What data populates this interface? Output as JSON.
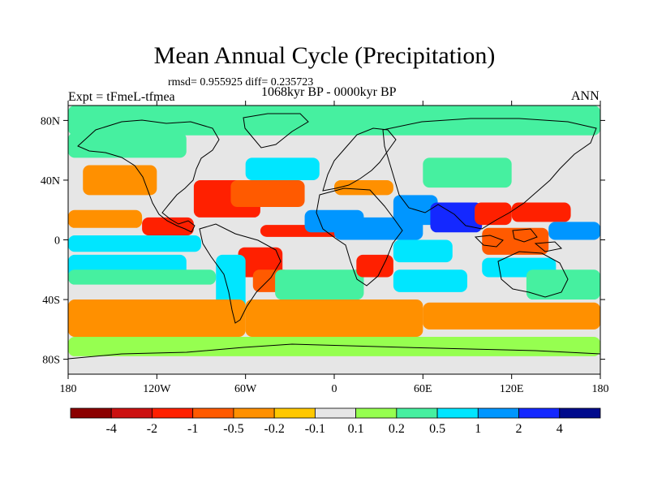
{
  "title": "Mean Annual Cycle (Precipitation)",
  "stats_text": "rmsd= 0.955925 diff= 0.235723",
  "left_label": "Expt = tFmeL-tfmea",
  "center_label": "1068kyr BP - 0000kyr BP",
  "right_label": "ANN",
  "chart_data": {
    "type": "heatmap",
    "title": "Mean Annual Cycle (Precipitation)",
    "projection": "cylindrical equidistant",
    "x_range": [
      -180,
      180
    ],
    "y_range": [
      -90,
      90
    ],
    "x_ticks": [
      {
        "value": -180,
        "label": "180"
      },
      {
        "value": -120,
        "label": "120W"
      },
      {
        "value": -60,
        "label": "60W"
      },
      {
        "value": 0,
        "label": "0"
      },
      {
        "value": 60,
        "label": "60E"
      },
      {
        "value": 120,
        "label": "120E"
      },
      {
        "value": 180,
        "label": "180"
      }
    ],
    "y_ticks": [
      {
        "value": 80,
        "label": "80N"
      },
      {
        "value": 40,
        "label": "40N"
      },
      {
        "value": 0,
        "label": "0"
      },
      {
        "value": -40,
        "label": "40S"
      },
      {
        "value": -80,
        "label": "80S"
      }
    ],
    "colorbar": {
      "levels": [
        "-4",
        "-2",
        "-1",
        "-0.5",
        "-0.2",
        "-0.1",
        "0.1",
        "0.2",
        "0.5",
        "1",
        "2",
        "4"
      ],
      "colors": [
        "#8b0000",
        "#cc1010",
        "#ff2000",
        "#ff5a00",
        "#ff9000",
        "#ffc800",
        "#e6e6e6",
        "#96ff50",
        "#46f0a0",
        "#00e6ff",
        "#0096ff",
        "#1428ff",
        "#000a8c"
      ]
    },
    "regions": [
      {
        "lon": [
          -180,
          180
        ],
        "lat": [
          70,
          90
        ],
        "value": 0.25
      },
      {
        "lon": [
          -180,
          -100
        ],
        "lat": [
          55,
          72
        ],
        "value": 0.3
      },
      {
        "lon": [
          -170,
          -120
        ],
        "lat": [
          30,
          50
        ],
        "value": -0.3
      },
      {
        "lon": [
          -180,
          -130
        ],
        "lat": [
          8,
          20
        ],
        "value": -0.4
      },
      {
        "lon": [
          -130,
          -95
        ],
        "lat": [
          3,
          15
        ],
        "value": -1.5
      },
      {
        "lon": [
          -180,
          -90
        ],
        "lat": [
          -8,
          3
        ],
        "value": 0.8
      },
      {
        "lon": [
          -180,
          -100
        ],
        "lat": [
          -25,
          -10
        ],
        "value": 0.6
      },
      {
        "lon": [
          -180,
          -80
        ],
        "lat": [
          -30,
          -20
        ],
        "value": 0.25
      },
      {
        "lon": [
          -95,
          -50
        ],
        "lat": [
          15,
          40
        ],
        "value": -1.6
      },
      {
        "lon": [
          -70,
          -20
        ],
        "lat": [
          22,
          40
        ],
        "value": -0.8
      },
      {
        "lon": [
          -60,
          -10
        ],
        "lat": [
          40,
          55
        ],
        "value": 0.6
      },
      {
        "lon": [
          -50,
          10
        ],
        "lat": [
          2,
          10
        ],
        "value": -2.0
      },
      {
        "lon": [
          -20,
          20
        ],
        "lat": [
          5,
          20
        ],
        "value": 1.2
      },
      {
        "lon": [
          0,
          60
        ],
        "lat": [
          0,
          15
        ],
        "value": 1.8
      },
      {
        "lon": [
          -65,
          -35
        ],
        "lat": [
          -25,
          -5
        ],
        "value": -1.2
      },
      {
        "lon": [
          -55,
          -30
        ],
        "lat": [
          -35,
          -20
        ],
        "value": -0.9
      },
      {
        "lon": [
          -80,
          -60
        ],
        "lat": [
          -55,
          -10
        ],
        "value": 0.5
      },
      {
        "lon": [
          -40,
          20
        ],
        "lat": [
          -40,
          -20
        ],
        "value": 0.3
      },
      {
        "lon": [
          15,
          40
        ],
        "lat": [
          -25,
          -10
        ],
        "value": -1.5
      },
      {
        "lon": [
          40,
          80
        ],
        "lat": [
          -15,
          0
        ],
        "value": 0.7
      },
      {
        "lon": [
          40,
          90
        ],
        "lat": [
          -35,
          -20
        ],
        "value": 0.5
      },
      {
        "lon": [
          40,
          70
        ],
        "lat": [
          10,
          30
        ],
        "value": 1.5
      },
      {
        "lon": [
          65,
          100
        ],
        "lat": [
          5,
          25
        ],
        "value": 2.5
      },
      {
        "lon": [
          95,
          120
        ],
        "lat": [
          10,
          25
        ],
        "value": -1.2
      },
      {
        "lon": [
          120,
          160
        ],
        "lat": [
          12,
          25
        ],
        "value": -1.5
      },
      {
        "lon": [
          100,
          145
        ],
        "lat": [
          -10,
          8
        ],
        "value": -0.9
      },
      {
        "lon": [
          145,
          180
        ],
        "lat": [
          0,
          12
        ],
        "value": 1.2
      },
      {
        "lon": [
          100,
          150
        ],
        "lat": [
          -25,
          -12
        ],
        "value": 0.6
      },
      {
        "lon": [
          130,
          180
        ],
        "lat": [
          -40,
          -20
        ],
        "value": 0.4
      },
      {
        "lon": [
          60,
          120
        ],
        "lat": [
          35,
          55
        ],
        "value": 0.3
      },
      {
        "lon": [
          0,
          40
        ],
        "lat": [
          30,
          40
        ],
        "value": -0.4
      },
      {
        "lon": [
          -180,
          -60
        ],
        "lat": [
          -65,
          -40
        ],
        "value": -0.3
      },
      {
        "lon": [
          -60,
          60
        ],
        "lat": [
          -65,
          -40
        ],
        "value": -0.35
      },
      {
        "lon": [
          60,
          180
        ],
        "lat": [
          -60,
          -42
        ],
        "value": -0.3
      },
      {
        "lon": [
          -180,
          180
        ],
        "lat": [
          -78,
          -65
        ],
        "value": 0.15
      }
    ]
  }
}
